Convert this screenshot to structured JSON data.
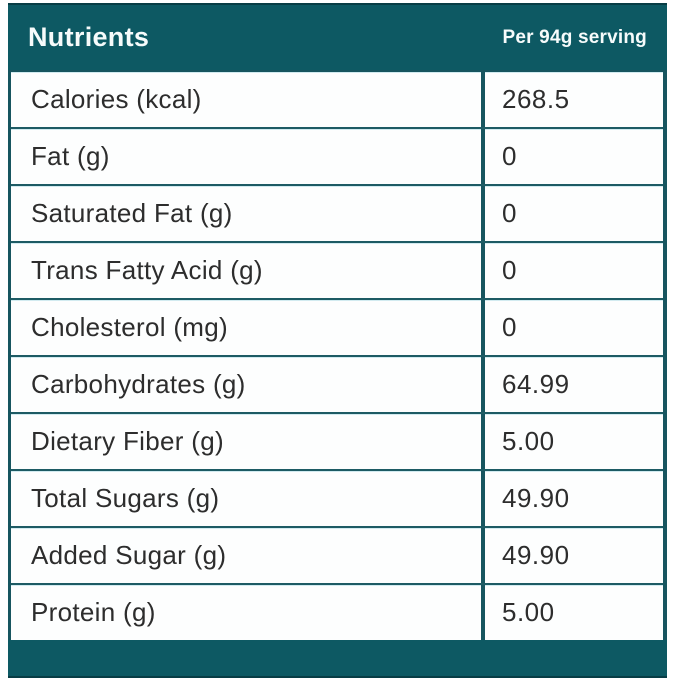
{
  "chart_data": {
    "type": "table",
    "title": "Nutrients",
    "serving_label": "Per 94g serving",
    "columns": [
      "Nutrient",
      "Per 94g serving"
    ],
    "rows": [
      {
        "label": "Calories (kcal)",
        "value": "268.5"
      },
      {
        "label": "Fat (g)",
        "value": "0"
      },
      {
        "label": "Saturated Fat (g)",
        "value": "0"
      },
      {
        "label": "Trans Fatty Acid (g)",
        "value": "0"
      },
      {
        "label": "Cholesterol (mg)",
        "value": "0"
      },
      {
        "label": "Carbohydrates (g)",
        "value": "64.99"
      },
      {
        "label": "Dietary Fiber (g)",
        "value": "5.00"
      },
      {
        "label": "Total Sugars (g)",
        "value": "49.90"
      },
      {
        "label": "Added Sugar (g)",
        "value": "49.90"
      },
      {
        "label": "Protein (g)",
        "value": "5.00"
      }
    ],
    "colors": {
      "header_background": "#0d5963",
      "border": "#17555f",
      "row_background": "#fdfefe",
      "header_text": "#f6fbfb",
      "body_text": "#2d2d2d"
    }
  }
}
